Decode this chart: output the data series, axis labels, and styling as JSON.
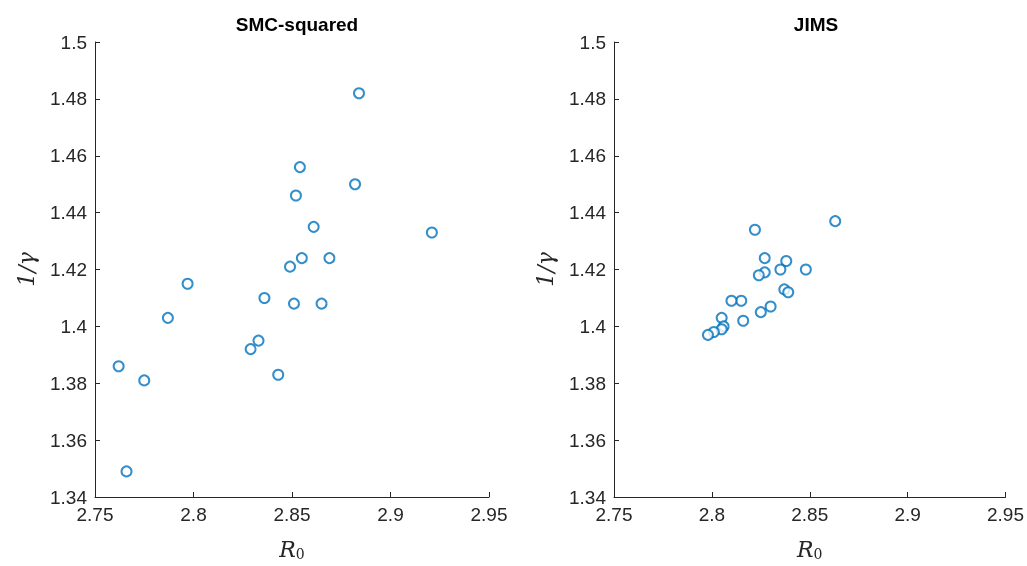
{
  "chart_data": [
    {
      "type": "scatter",
      "title": "SMC-squared",
      "xlabel": "R$_{0}$",
      "ylabel": "1/γ",
      "marker": "circle",
      "grid": false,
      "xlim": [
        2.75,
        2.95
      ],
      "xticks": [
        2.75,
        2.8,
        2.85,
        2.9,
        2.95
      ],
      "ylim": [
        1.34,
        1.5
      ],
      "yticks": [
        1.34,
        1.36,
        1.38,
        1.4,
        1.42,
        1.44,
        1.46,
        1.48,
        1.5
      ],
      "series": [
        {
          "color": "#0072bd",
          "x": [
            2.884,
            2.854,
            2.882,
            2.852,
            2.861,
            2.921,
            2.855,
            2.869,
            2.849,
            2.797,
            2.836,
            2.851,
            2.865,
            2.787,
            2.833,
            2.829,
            2.762,
            2.775,
            2.843,
            2.766
          ],
          "values": [
            1.482,
            1.456,
            1.45,
            1.446,
            1.435,
            1.433,
            1.424,
            1.424,
            1.421,
            1.415,
            1.41,
            1.408,
            1.408,
            1.403,
            1.395,
            1.392,
            1.386,
            1.381,
            1.383,
            1.349
          ]
        }
      ]
    },
    {
      "type": "scatter",
      "title": "JIMS",
      "xlabel": "R$_{0}$",
      "ylabel": "1/γ",
      "marker": "circle",
      "grid": false,
      "xlim": [
        2.75,
        2.95
      ],
      "xticks": [
        2.75,
        2.8,
        2.85,
        2.9,
        2.95
      ],
      "ylim": [
        1.34,
        1.5
      ],
      "yticks": [
        1.34,
        1.36,
        1.38,
        1.4,
        1.42,
        1.44,
        1.46,
        1.48,
        1.5
      ],
      "series": [
        {
          "color": "#0072bd",
          "x": [
            2.863,
            2.822,
            2.827,
            2.838,
            2.835,
            2.848,
            2.827,
            2.824,
            2.837,
            2.839,
            2.815,
            2.81,
            2.83,
            2.825,
            2.805,
            2.816,
            2.806,
            2.805,
            2.801,
            2.798
          ],
          "values": [
            1.437,
            1.434,
            1.424,
            1.423,
            1.42,
            1.42,
            1.419,
            1.418,
            1.413,
            1.412,
            1.409,
            1.409,
            1.407,
            1.405,
            1.403,
            1.402,
            1.4,
            1.399,
            1.398,
            1.397
          ]
        }
      ]
    }
  ]
}
